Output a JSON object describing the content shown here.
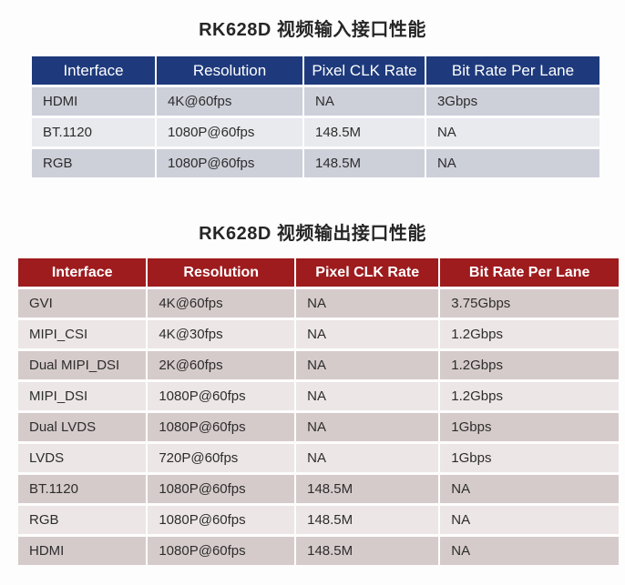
{
  "tables": [
    {
      "title": "RK628D 视频输入接口性能",
      "header_color": "#1e3a7c",
      "header_text_color": "#ffffff",
      "row_colors": [
        "#cdcfd9",
        "#e9eaee"
      ],
      "columns": [
        "Interface",
        "Resolution",
        "Pixel CLK Rate",
        "Bit Rate Per Lane"
      ],
      "rows": [
        [
          "HDMI",
          "4K@60fps",
          "NA",
          "3Gbps"
        ],
        [
          "BT.1120",
          "1080P@60fps",
          "148.5M",
          "NA"
        ],
        [
          "RGB",
          "1080P@60fps",
          "148.5M",
          "NA"
        ]
      ]
    },
    {
      "title": "RK628D 视频输出接口性能",
      "header_color": "#9e1b1e",
      "header_text_color": "#ffffff",
      "row_colors": [
        "#d6cbcb",
        "#ece6e6"
      ],
      "columns": [
        "Interface",
        "Resolution",
        "Pixel CLK Rate",
        "Bit Rate Per Lane"
      ],
      "rows": [
        [
          "GVI",
          "4K@60fps",
          "NA",
          "3.75Gbps"
        ],
        [
          "MIPI_CSI",
          "4K@30fps",
          "NA",
          "1.2Gbps"
        ],
        [
          "Dual MIPI_DSI",
          "2K@60fps",
          "NA",
          "1.2Gbps"
        ],
        [
          "MIPI_DSI",
          "1080P@60fps",
          "NA",
          "1.2Gbps"
        ],
        [
          "Dual LVDS",
          "1080P@60fps",
          "NA",
          "1Gbps"
        ],
        [
          "LVDS",
          "720P@60fps",
          "NA",
          "1Gbps"
        ],
        [
          "BT.1120",
          "1080P@60fps",
          "148.5M",
          "NA"
        ],
        [
          "RGB",
          "1080P@60fps",
          "148.5M",
          "NA"
        ],
        [
          "HDMI",
          "1080P@60fps",
          "148.5M",
          "NA"
        ]
      ]
    }
  ]
}
